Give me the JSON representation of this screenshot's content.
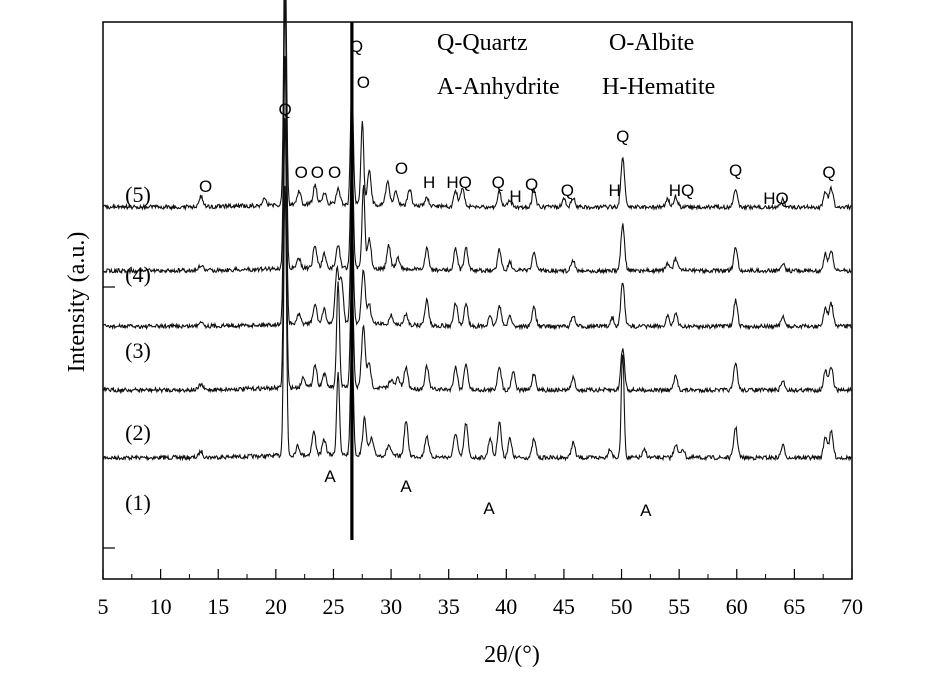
{
  "chart_data": {
    "type": "line",
    "xlabel": "2θ/(°)",
    "ylabel": "Intensity (a.u.)",
    "xlim": [
      5,
      70
    ],
    "xticks": [
      5,
      10,
      15,
      20,
      25,
      30,
      35,
      40,
      45,
      50,
      55,
      60,
      65,
      70
    ],
    "grid": false,
    "legend": {
      "position": "top-right",
      "entries": [
        "Q-Quartz",
        "O-Albite",
        "A-Anhydrite",
        "H-Hematite"
      ]
    },
    "series": [
      {
        "label": "(1)",
        "baseline": 540,
        "peaks": [
          [
            13.5,
            8
          ],
          [
            20.8,
            360
          ],
          [
            21.9,
            12
          ],
          [
            23.3,
            30
          ],
          [
            24.2,
            20
          ],
          [
            25.4,
            110
          ],
          [
            26.6,
            160
          ],
          [
            27.7,
            48
          ],
          [
            28.3,
            22
          ],
          [
            29.8,
            14
          ],
          [
            31.3,
            46
          ],
          [
            33.1,
            28
          ],
          [
            35.6,
            32
          ],
          [
            36.5,
            45
          ],
          [
            38.6,
            26
          ],
          [
            39.4,
            48
          ],
          [
            40.3,
            25
          ],
          [
            42.4,
            24
          ],
          [
            45.8,
            20
          ],
          [
            49.0,
            12
          ],
          [
            50.1,
            140
          ],
          [
            52.0,
            10
          ],
          [
            54.7,
            18
          ],
          [
            55.3,
            12
          ],
          [
            59.9,
            40
          ],
          [
            64.0,
            16
          ],
          [
            67.7,
            28
          ],
          [
            68.2,
            34
          ]
        ]
      },
      {
        "label": "(2)",
        "baseline": 455,
        "peaks": [
          [
            13.5,
            7
          ],
          [
            20.8,
            360
          ],
          [
            22.4,
            14
          ],
          [
            23.4,
            30
          ],
          [
            24.2,
            18
          ],
          [
            25.4,
            140
          ],
          [
            26.6,
            160
          ],
          [
            27.6,
            80
          ],
          [
            28.1,
            30
          ],
          [
            30.0,
            12
          ],
          [
            30.6,
            14
          ],
          [
            31.3,
            28
          ],
          [
            33.1,
            30
          ],
          [
            35.6,
            30
          ],
          [
            36.5,
            35
          ],
          [
            39.4,
            32
          ],
          [
            40.6,
            25
          ],
          [
            42.4,
            22
          ],
          [
            45.8,
            16
          ],
          [
            50.1,
            55
          ],
          [
            54.7,
            18
          ],
          [
            59.9,
            35
          ],
          [
            64.0,
            12
          ],
          [
            67.7,
            25
          ],
          [
            68.2,
            30
          ]
        ]
      },
      {
        "label": "(3)",
        "baseline": 375,
        "peaks": [
          [
            13.5,
            7
          ],
          [
            20.8,
            360
          ],
          [
            22.0,
            12
          ],
          [
            23.4,
            25
          ],
          [
            24.2,
            18
          ],
          [
            25.3,
            70
          ],
          [
            25.7,
            55
          ],
          [
            26.6,
            160
          ],
          [
            27.6,
            70
          ],
          [
            28.1,
            25
          ],
          [
            30.0,
            12
          ],
          [
            31.3,
            14
          ],
          [
            33.1,
            34
          ],
          [
            35.6,
            30
          ],
          [
            36.5,
            30
          ],
          [
            38.6,
            12
          ],
          [
            39.4,
            28
          ],
          [
            40.3,
            14
          ],
          [
            42.4,
            26
          ],
          [
            45.8,
            14
          ],
          [
            49.2,
            12
          ],
          [
            50.1,
            58
          ],
          [
            54.0,
            14
          ],
          [
            54.7,
            16
          ],
          [
            59.9,
            34
          ],
          [
            64.0,
            12
          ],
          [
            67.7,
            25
          ],
          [
            68.2,
            30
          ]
        ]
      },
      {
        "label": "(4)",
        "baseline": 305,
        "peaks": [
          [
            13.5,
            7
          ],
          [
            20.8,
            360
          ],
          [
            22.0,
            12
          ],
          [
            23.4,
            30
          ],
          [
            24.2,
            18
          ],
          [
            25.4,
            30
          ],
          [
            26.6,
            160
          ],
          [
            27.6,
            110
          ],
          [
            28.1,
            40
          ],
          [
            29.8,
            30
          ],
          [
            30.6,
            14
          ],
          [
            33.1,
            28
          ],
          [
            35.6,
            28
          ],
          [
            36.5,
            30
          ],
          [
            39.4,
            28
          ],
          [
            40.3,
            12
          ],
          [
            42.4,
            24
          ],
          [
            45.8,
            14
          ],
          [
            50.1,
            60
          ],
          [
            54.0,
            10
          ],
          [
            54.7,
            16
          ],
          [
            59.9,
            32
          ],
          [
            64.0,
            10
          ],
          [
            67.7,
            22
          ],
          [
            68.2,
            26
          ]
        ]
      },
      {
        "label": "(5)",
        "baseline": 225,
        "peaks": [
          [
            13.5,
            14
          ],
          [
            19.0,
            8
          ],
          [
            20.8,
            360
          ],
          [
            22.0,
            18
          ],
          [
            23.4,
            25
          ],
          [
            24.2,
            15
          ],
          [
            25.4,
            20
          ],
          [
            26.6,
            160
          ],
          [
            27.5,
            110
          ],
          [
            28.1,
            45
          ],
          [
            29.7,
            32
          ],
          [
            30.4,
            20
          ],
          [
            31.6,
            22
          ],
          [
            33.1,
            10
          ],
          [
            35.6,
            20
          ],
          [
            36.2,
            24
          ],
          [
            39.4,
            20
          ],
          [
            40.3,
            10
          ],
          [
            42.4,
            22
          ],
          [
            45.0,
            10
          ],
          [
            45.8,
            12
          ],
          [
            50.1,
            65
          ],
          [
            54.0,
            10
          ],
          [
            54.7,
            14
          ],
          [
            59.9,
            25
          ],
          [
            64.0,
            10
          ],
          [
            67.7,
            20
          ],
          [
            68.2,
            25
          ]
        ]
      }
    ],
    "annotations": [
      {
        "text": "(5)",
        "kind": "series"
      },
      {
        "text": "(4)",
        "kind": "series"
      },
      {
        "text": "(3)",
        "kind": "series"
      },
      {
        "text": "(2)",
        "kind": "series"
      },
      {
        "text": "(1)",
        "kind": "series"
      },
      {
        "text": "O",
        "x": 13.9
      },
      {
        "text": "Q",
        "x": 20.8
      },
      {
        "text": "O",
        "x": 22.2
      },
      {
        "text": "O",
        "x": 23.6
      },
      {
        "text": "O",
        "x": 25.1
      },
      {
        "text": "Q",
        "x": 27.0
      },
      {
        "text": "O",
        "x": 27.6
      },
      {
        "text": "O",
        "x": 30.9
      },
      {
        "text": "H",
        "x": 33.3
      },
      {
        "text": "HQ",
        "x": 35.9
      },
      {
        "text": "Q",
        "x": 39.3
      },
      {
        "text": "H",
        "x": 40.8
      },
      {
        "text": "Q",
        "x": 42.2
      },
      {
        "text": "Q",
        "x": 45.3
      },
      {
        "text": "H",
        "x": 49.4
      },
      {
        "text": "Q",
        "x": 50.1
      },
      {
        "text": "HQ",
        "x": 55.2
      },
      {
        "text": "Q",
        "x": 59.9
      },
      {
        "text": "HQ",
        "x": 63.4
      },
      {
        "text": "Q",
        "x": 68.0
      },
      {
        "text": "A",
        "x": 24.7
      },
      {
        "text": "A",
        "x": 31.3
      },
      {
        "text": "A",
        "x": 38.5
      },
      {
        "text": "A",
        "x": 52.1
      }
    ]
  }
}
